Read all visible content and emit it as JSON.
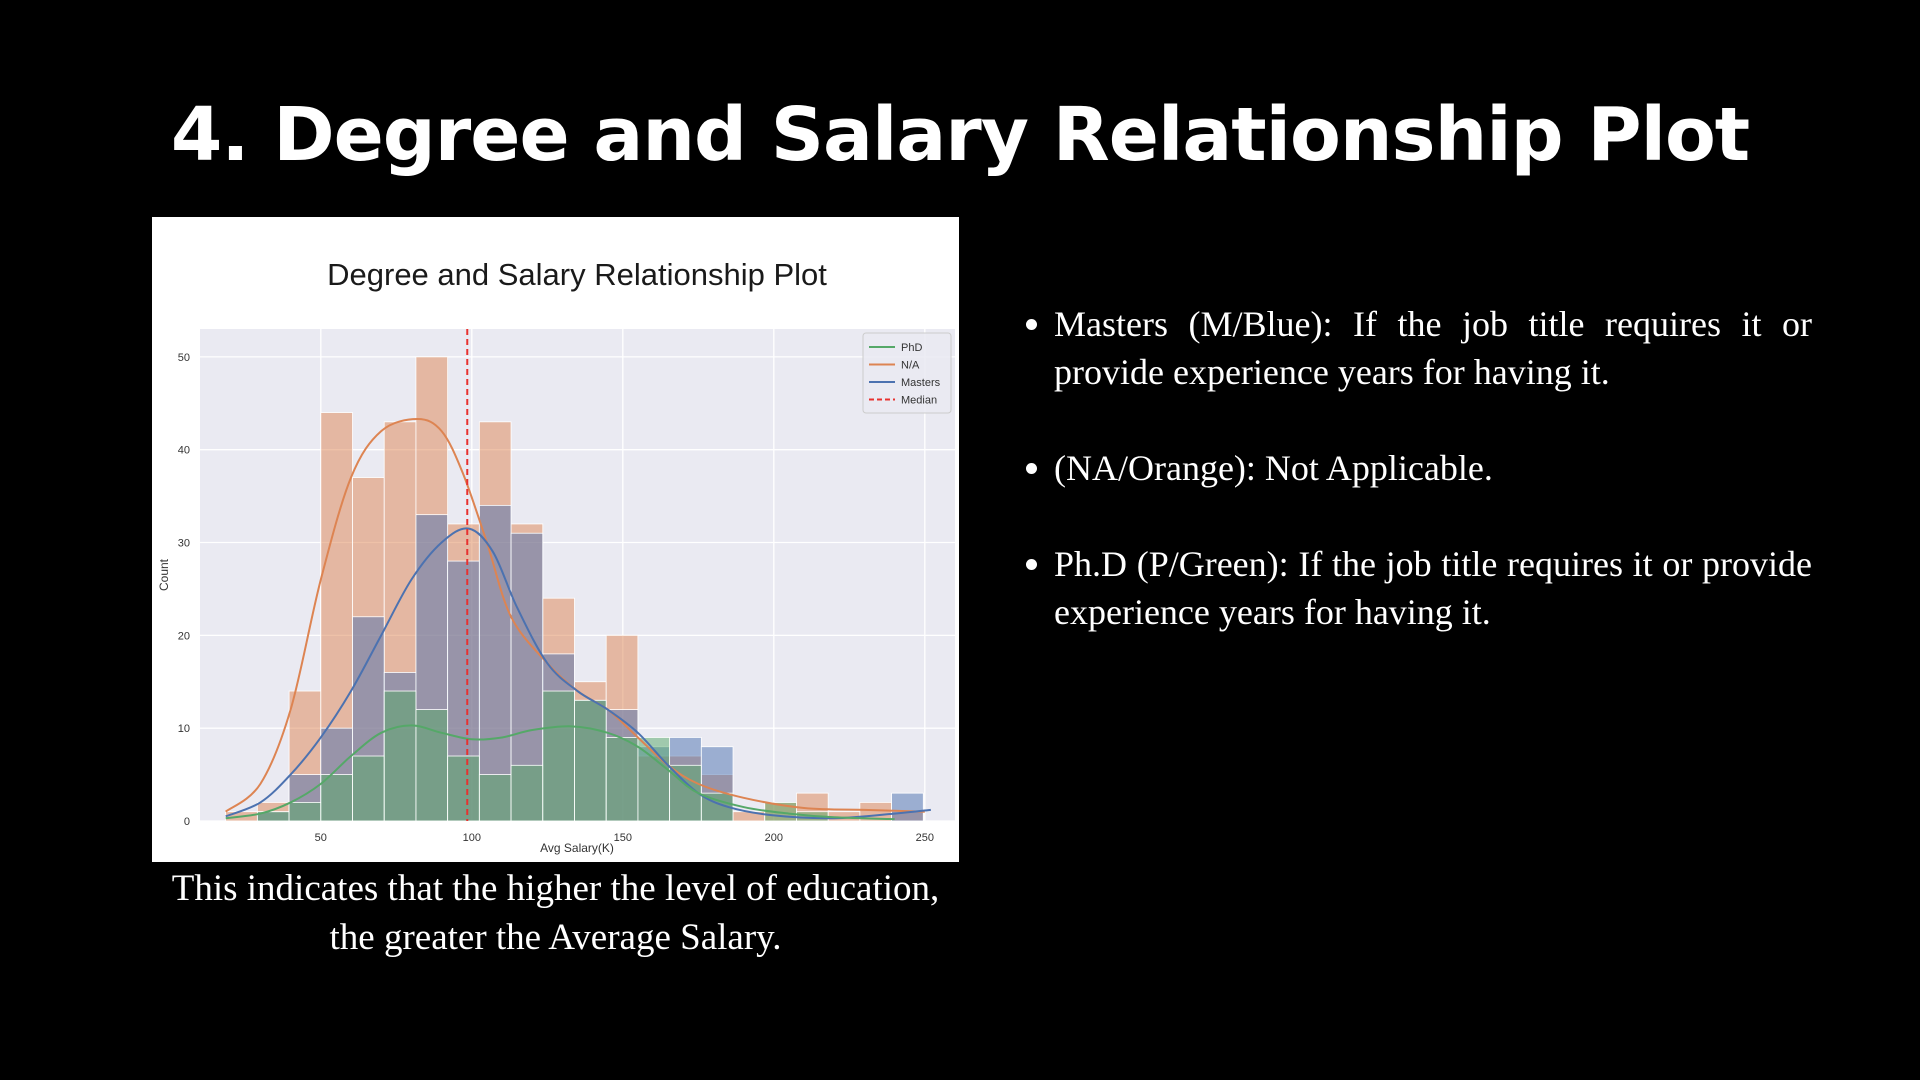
{
  "slide": {
    "title": "4. Degree and Salary Relationship Plot",
    "caption": "This indicates that the higher the level of education, the greater the Average Salary.",
    "bullets": [
      "Masters (M/Blue): If the job title requires it or provide experience years for having it.",
      "(NA/Orange): Not Applicable.",
      "Ph.D (P/Green): If the job title requires it or provide experience years for having it."
    ]
  },
  "chart_data": {
    "type": "bar",
    "title": "Degree and Salary Relationship Plot",
    "xlabel": "Avg Salary(K)",
    "ylabel": "Count",
    "xlim": [
      10,
      260
    ],
    "ylim": [
      0,
      53
    ],
    "xticks": [
      50,
      100,
      150,
      200,
      250
    ],
    "yticks": [
      0,
      10,
      20,
      30,
      40,
      50
    ],
    "grid": true,
    "legend_position": "top-right",
    "bin_edges": [
      18.5,
      29.0,
      39.5,
      50.0,
      60.5,
      71.0,
      81.5,
      92.0,
      102.5,
      113.0,
      123.5,
      134.0,
      144.5,
      155.0,
      165.5,
      176.0,
      186.5,
      197.0,
      207.5,
      218.0,
      228.5,
      239.0,
      249.5
    ],
    "median": 98.5,
    "series": [
      {
        "name": "N/A",
        "color": "#dd8452",
        "values": [
          1,
          2,
          14,
          44,
          37,
          43,
          50,
          32,
          43,
          32,
          24,
          15,
          20,
          7,
          7,
          5,
          1,
          2,
          3,
          1,
          2,
          1
        ],
        "kde": [
          [
            18.5,
            1
          ],
          [
            30,
            4
          ],
          [
            40,
            12
          ],
          [
            50,
            26
          ],
          [
            60,
            37
          ],
          [
            70,
            42
          ],
          [
            82,
            43.3
          ],
          [
            90,
            42
          ],
          [
            97,
            37.5
          ],
          [
            105,
            30
          ],
          [
            113,
            22
          ],
          [
            125,
            17
          ],
          [
            135,
            14
          ],
          [
            145,
            12
          ],
          [
            155,
            9
          ],
          [
            165,
            6
          ],
          [
            175,
            4
          ],
          [
            190,
            2.5
          ],
          [
            210,
            1.4
          ],
          [
            230,
            1.2
          ],
          [
            240,
            1.1
          ],
          [
            250,
            1
          ]
        ]
      },
      {
        "name": "Masters",
        "color": "#4c72b0",
        "values": [
          0,
          1,
          5,
          10,
          22,
          16,
          33,
          28,
          34,
          31,
          18,
          13,
          12,
          8,
          9,
          8,
          0,
          0,
          0,
          0,
          0,
          3
        ],
        "kde": [
          [
            18.5,
            0.5
          ],
          [
            30,
            2
          ],
          [
            40,
            5
          ],
          [
            50,
            9
          ],
          [
            60,
            14
          ],
          [
            70,
            20
          ],
          [
            80,
            26
          ],
          [
            90,
            30
          ],
          [
            99,
            31.5
          ],
          [
            107,
            29
          ],
          [
            115,
            23
          ],
          [
            125,
            17
          ],
          [
            135,
            14
          ],
          [
            145,
            12
          ],
          [
            155,
            9.5
          ],
          [
            165,
            6
          ],
          [
            175,
            3
          ],
          [
            185,
            1.5
          ],
          [
            200,
            0.6
          ],
          [
            220,
            0.3
          ],
          [
            240,
            0.8
          ],
          [
            252,
            1.2
          ]
        ]
      },
      {
        "name": "PhD",
        "color": "#55a868",
        "values": [
          0,
          1,
          2,
          5,
          7,
          14,
          12,
          7,
          5,
          6,
          14,
          13,
          9,
          9,
          6,
          3,
          0,
          2,
          1,
          0,
          0,
          0
        ],
        "kde": [
          [
            18.5,
            0.3
          ],
          [
            30,
            0.8
          ],
          [
            40,
            2
          ],
          [
            50,
            4
          ],
          [
            60,
            7
          ],
          [
            70,
            9.5
          ],
          [
            80,
            10.3
          ],
          [
            90,
            9.5
          ],
          [
            100,
            8.8
          ],
          [
            110,
            9
          ],
          [
            120,
            9.8
          ],
          [
            133,
            10.2
          ],
          [
            145,
            9.5
          ],
          [
            155,
            8
          ],
          [
            165,
            5.5
          ],
          [
            175,
            3
          ],
          [
            190,
            1.5
          ],
          [
            205,
            0.8
          ],
          [
            220,
            0.4
          ],
          [
            240,
            0.2
          ]
        ]
      }
    ],
    "legend": [
      {
        "name": "PhD",
        "color": "#55a868",
        "dash": false
      },
      {
        "name": "N/A",
        "color": "#dd8452",
        "dash": false
      },
      {
        "name": "Masters",
        "color": "#4c72b0",
        "dash": false
      },
      {
        "name": "Median",
        "color": "#e8312f",
        "dash": true
      }
    ]
  }
}
